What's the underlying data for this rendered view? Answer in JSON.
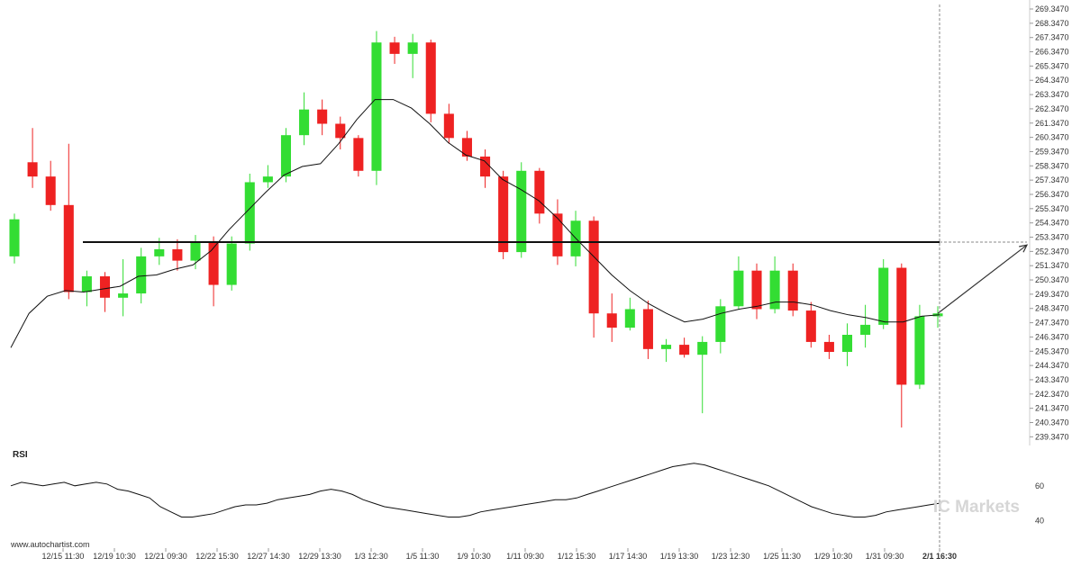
{
  "chart_data": [
    {
      "type": "candlestick",
      "title": "",
      "y_ticks": [
        "239.3470",
        "240.3470",
        "241.3470",
        "242.3470",
        "243.3470",
        "244.3470",
        "245.3470",
        "246.3470",
        "247.3470",
        "248.3470",
        "249.3470",
        "250.3470",
        "251.3470",
        "252.3470",
        "253.3470",
        "254.3470",
        "255.3470",
        "256.3470",
        "257.3470",
        "258.3470",
        "259.3470",
        "260.3470",
        "261.3470",
        "262.3470",
        "263.3470",
        "264.3470",
        "265.3470",
        "266.3470",
        "267.3470",
        "268.3470",
        "269.3470"
      ],
      "ylim": [
        238.8,
        269.6
      ],
      "x_ticks": [
        "12/15 11:30",
        "12/19 10:30",
        "12/21 09:30",
        "12/22 15:30",
        "12/27 14:30",
        "12/29 13:30",
        "1/3 12:30",
        "1/5 11:30",
        "1/9 10:30",
        "1/11 09:30",
        "1/12 15:30",
        "1/17 14:30",
        "1/19 13:30",
        "1/23 12:30",
        "1/25 11:30",
        "1/29 10:30",
        "1/31 09:30",
        "2/1 16:30"
      ],
      "last_x_label": "2/1 16:30",
      "colors": {
        "up": "#33dd33",
        "down": "#ee2222",
        "ma": "#111111",
        "level": "#111111",
        "forecast": "#333333"
      },
      "resistance_level": 253.0,
      "forecast_target": 252.8,
      "moving_average": [
        245.6,
        248.0,
        249.2,
        249.6,
        249.5,
        249.7,
        249.9,
        250.6,
        250.7,
        251.1,
        251.4,
        252.4,
        253.9,
        255.2,
        256.5,
        257.7,
        258.3,
        258.5,
        259.9,
        261.6,
        263.0,
        263.0,
        262.4,
        261.3,
        260.0,
        259.1,
        258.7,
        257.4,
        256.7,
        255.9,
        254.7,
        253.3,
        252.0,
        250.7,
        249.6,
        248.7,
        248.0,
        247.4,
        247.6,
        248.0,
        248.3,
        248.5,
        248.8,
        248.8,
        248.6,
        248.2,
        247.9,
        247.7,
        247.4,
        247.4,
        247.8,
        247.9
      ],
      "candles": [
        [
          252.0,
          254.6,
          251.5,
          255.0
        ],
        [
          258.6,
          257.6,
          256.8,
          261.0
        ],
        [
          257.6,
          255.6,
          255.2,
          258.7
        ],
        [
          255.6,
          249.5,
          249.0,
          259.9
        ],
        [
          249.5,
          250.6,
          248.5,
          251.0
        ],
        [
          250.6,
          249.1,
          248.1,
          250.9
        ],
        [
          249.1,
          249.4,
          247.8,
          251.8
        ],
        [
          249.4,
          252.0,
          248.7,
          252.6
        ],
        [
          252.0,
          252.5,
          251.4,
          253.3
        ],
        [
          252.5,
          251.7,
          251.0,
          253.2
        ],
        [
          251.7,
          253.0,
          251.1,
          253.5
        ],
        [
          253.0,
          250.0,
          248.5,
          253.4
        ],
        [
          250.0,
          252.9,
          249.6,
          253.4
        ],
        [
          252.9,
          257.2,
          252.4,
          257.8
        ],
        [
          257.2,
          257.6,
          256.8,
          258.4
        ],
        [
          257.6,
          260.5,
          257.2,
          261.0
        ],
        [
          260.5,
          262.3,
          259.8,
          263.5
        ],
        [
          262.3,
          261.3,
          260.5,
          263.0
        ],
        [
          261.3,
          260.3,
          259.5,
          261.8
        ],
        [
          260.3,
          258.0,
          257.6,
          260.5
        ],
        [
          258.0,
          267.0,
          257.0,
          267.8
        ],
        [
          267.0,
          266.2,
          265.5,
          267.4
        ],
        [
          266.2,
          267.0,
          264.5,
          267.6
        ],
        [
          267.0,
          262.0,
          261.4,
          267.2
        ],
        [
          262.0,
          260.3,
          259.9,
          262.7
        ],
        [
          260.3,
          259.0,
          258.7,
          260.8
        ],
        [
          259.0,
          257.6,
          256.8,
          259.5
        ],
        [
          257.6,
          252.3,
          251.8,
          258.0
        ],
        [
          252.3,
          258.0,
          251.9,
          258.6
        ],
        [
          258.0,
          255.0,
          254.3,
          258.2
        ],
        [
          255.0,
          252.0,
          251.4,
          256.0
        ],
        [
          252.0,
          254.5,
          251.3,
          255.2
        ],
        [
          254.5,
          248.0,
          246.3,
          254.8
        ],
        [
          248.0,
          247.0,
          246.0,
          249.4
        ],
        [
          247.0,
          248.3,
          246.8,
          249.1
        ],
        [
          248.3,
          245.5,
          244.8,
          248.9
        ],
        [
          245.5,
          245.8,
          244.6,
          246.2
        ],
        [
          245.8,
          245.1,
          244.9,
          246.3
        ],
        [
          245.1,
          246.0,
          241.0,
          246.4
        ],
        [
          246.0,
          248.5,
          245.2,
          249.0
        ],
        [
          248.5,
          251.0,
          248.3,
          252.0
        ],
        [
          251.0,
          248.3,
          247.6,
          251.5
        ],
        [
          248.3,
          251.0,
          248.0,
          252.0
        ],
        [
          251.0,
          248.2,
          247.8,
          251.5
        ],
        [
          248.2,
          246.0,
          245.6,
          248.8
        ],
        [
          246.0,
          245.3,
          244.8,
          246.5
        ],
        [
          245.3,
          246.5,
          244.3,
          247.3
        ],
        [
          246.5,
          247.2,
          245.6,
          248.6
        ],
        [
          247.2,
          251.2,
          246.9,
          251.8
        ],
        [
          251.2,
          243.0,
          240.0,
          251.5
        ],
        [
          243.0,
          247.8,
          242.7,
          248.6
        ],
        [
          247.8,
          248.0,
          247.0,
          248.5
        ]
      ],
      "series": [
        {
          "values": []
        }
      ]
    },
    {
      "type": "line",
      "ylabel": "RSI",
      "y_ticks": [
        "60",
        "40"
      ],
      "ylim": [
        34,
        78
      ],
      "series": [
        {
          "values": [
            60,
            62,
            61,
            60,
            61,
            62,
            60,
            61,
            62,
            61,
            58,
            57,
            55,
            53,
            48,
            45,
            42,
            42,
            43,
            44,
            46,
            48,
            49,
            49,
            50,
            52,
            53,
            54,
            55,
            57,
            58,
            57,
            55,
            52,
            50,
            48,
            47,
            46,
            45,
            44,
            43,
            42,
            42,
            43,
            45,
            46,
            47,
            48,
            49,
            50,
            51,
            52,
            52,
            53,
            55,
            57,
            59,
            61,
            63,
            65,
            67,
            69,
            71,
            72,
            73,
            72,
            70,
            68,
            66,
            64,
            62,
            60,
            57,
            54,
            51,
            48,
            46,
            44,
            43,
            42,
            42,
            43,
            45,
            46,
            47,
            48,
            49,
            50
          ]
        }
      ]
    }
  ],
  "watermark": "www.autochartist.com",
  "brand": "IC Markets"
}
